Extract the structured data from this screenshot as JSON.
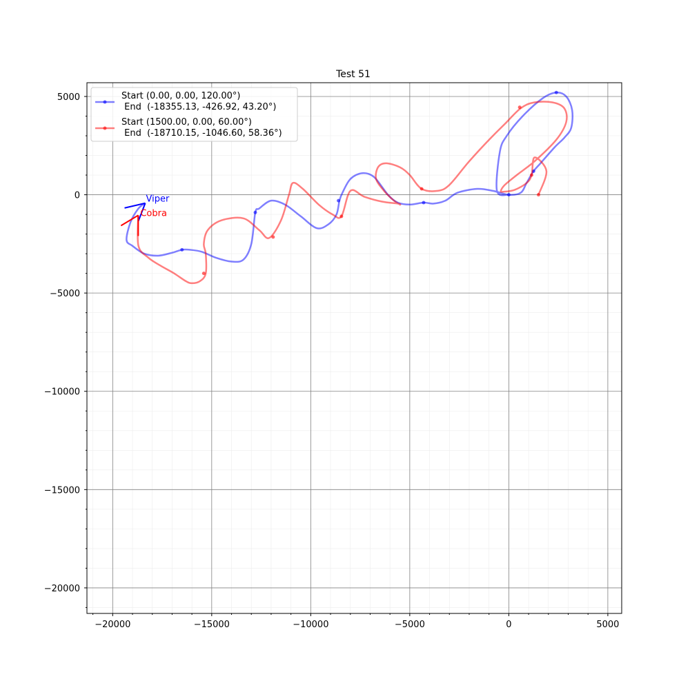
{
  "chart_data": {
    "type": "line",
    "title": "Test 51",
    "xlabel": "",
    "ylabel": "",
    "xlim": [
      -21300,
      5700
    ],
    "ylim": [
      -21300,
      5700
    ],
    "grid": true,
    "legend_position": "upper-left",
    "x_ticks": [
      -20000,
      -15000,
      -10000,
      -5000,
      0,
      5000
    ],
    "x_tick_labels": [
      "−20000",
      "−15000",
      "−10000",
      "−5000",
      "0",
      "5000"
    ],
    "y_ticks": [
      5000,
      0,
      -5000,
      -10000,
      -15000,
      -20000
    ],
    "y_tick_labels": [
      "5000",
      "0",
      "−5000",
      "−10000",
      "−15000",
      "−20000"
    ],
    "series": [
      {
        "name": "Start (0.00, 0.00, 120.00°)\n End  (-18355.13, -426.92, 43.20°)",
        "color": "#0000ff",
        "label": "Viper",
        "x": [
          0,
          -600,
          -450,
          -100,
          700,
          1700,
          2400,
          2900,
          3200,
          3150,
          2800,
          2300,
          1600,
          1250,
          900,
          600,
          0,
          -800,
          -1600,
          -2600,
          -3200,
          -3800,
          -4300,
          -5000,
          -5600,
          -6100,
          -6800,
          -7400,
          -8000,
          -8400,
          -8550,
          -8700,
          -9100,
          -9700,
          -10500,
          -11300,
          -12000,
          -12600,
          -12800,
          -13000,
          -13400,
          -14000,
          -14800,
          -15500,
          -16100,
          -16500,
          -17000,
          -17700,
          -18400,
          -19000,
          -19300,
          -19100,
          -18700,
          -18355.13
        ],
        "y": [
          0,
          200,
          2200,
          3000,
          4000,
          4900,
          5200,
          5000,
          4300,
          3400,
          2900,
          2400,
          1600,
          1200,
          600,
          100,
          0,
          200,
          300,
          100,
          -300,
          -450,
          -400,
          -500,
          -400,
          0,
          900,
          1100,
          800,
          100,
          -300,
          -1000,
          -1500,
          -1700,
          -1100,
          -500,
          -300,
          -700,
          -900,
          -2500,
          -3300,
          -3400,
          -3200,
          -2900,
          -2800,
          -2800,
          -2950,
          -3100,
          -3000,
          -2600,
          -2300,
          -1400,
          -700,
          -426.92
        ],
        "markers": [
          [
            0,
            0
          ],
          [
            2400,
            5200
          ],
          [
            1250,
            1200
          ],
          [
            -4300,
            -400
          ],
          [
            -8600,
            -300
          ],
          [
            -12800,
            -900
          ],
          [
            -16500,
            -2800
          ]
        ]
      },
      {
        "name": "Start (1500.00, 0.00, 60.00°)\n End  (-18710.15, -1046.60, 58.36°)",
        "color": "#ff0000",
        "label": "Cobra",
        "x": [
          1500,
          1900,
          1300,
          1150,
          900,
          300,
          -300,
          -400,
          -200,
          400,
          1300,
          2400,
          2900,
          2800,
          2200,
          1300,
          600,
          -200,
          -900,
          -2000,
          -3000,
          -3600,
          -4400,
          -5000,
          -5500,
          -6200,
          -6600,
          -6700,
          -6300,
          -5800,
          -5500,
          -5600,
          -6400,
          -7300,
          -8000,
          -8450,
          -8900,
          -9600,
          -10400,
          -10900,
          -11100,
          -11500,
          -12100,
          -12600,
          -13400,
          -14500,
          -15200,
          -15400,
          -15300,
          -15300,
          -15600,
          -16000,
          -16300,
          -16900,
          -17600,
          -18200,
          -18700,
          -18710.15
        ],
        "y": [
          0,
          1200,
          1900,
          1000,
          600,
          250,
          150,
          200,
          500,
          1000,
          1700,
          2800,
          3700,
          4400,
          4700,
          4700,
          4400,
          3600,
          2900,
          1700,
          500,
          200,
          300,
          1000,
          1400,
          1600,
          1400,
          800,
          200,
          -300,
          -500,
          -450,
          -350,
          -100,
          200,
          -1100,
          -1000,
          -500,
          300,
          600,
          0,
          -1300,
          -2200,
          -1800,
          -1200,
          -1300,
          -1800,
          -2500,
          -3000,
          -4000,
          -4400,
          -4500,
          -4400,
          -4000,
          -3600,
          -3200,
          -2600,
          -1046.6
        ],
        "markers": [
          [
            1500,
            0
          ],
          [
            1150,
            1000
          ],
          [
            550,
            4450
          ],
          [
            -4400,
            300
          ],
          [
            -8450,
            -1100
          ],
          [
            -11900,
            -2150
          ],
          [
            -15400,
            -4000
          ]
        ]
      }
    ]
  }
}
